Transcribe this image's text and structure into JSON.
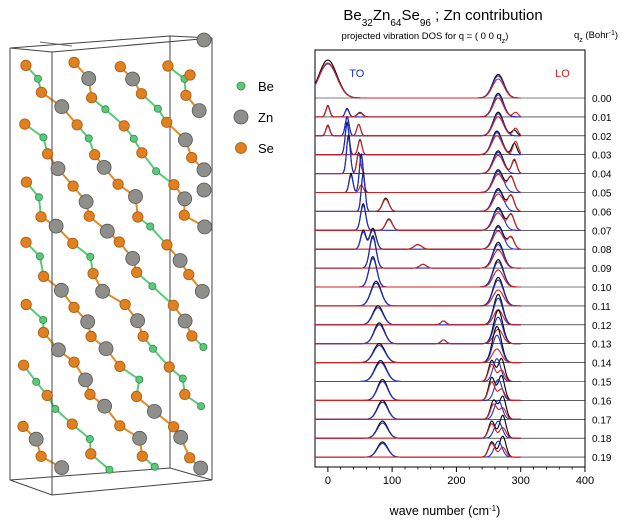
{
  "crystal": {
    "legend": [
      {
        "label": "Be",
        "color": "#5cc97a",
        "icon": "be-atom-icon"
      },
      {
        "label": "Zn",
        "color": "#8e8e8a",
        "icon": "zn-atom-icon"
      },
      {
        "label": "Se",
        "color": "#e0801f",
        "icon": "se-atom-icon"
      }
    ],
    "bond_color": "#e08a2a",
    "be_bond_color": "#5cc97a"
  },
  "chart_data": {
    "type": "line",
    "title": {
      "base1": "Be",
      "sub1": "32",
      "base2": "Zn",
      "sub2": "64",
      "base3": "Se",
      "sub3": "96",
      "rest": " ; Zn contribution"
    },
    "subtitle": {
      "main": "projected vibration DOS for q = ( 0 0 q",
      "sub": "z",
      "end": ")"
    },
    "q_header": {
      "base": "q",
      "sub": "z",
      "rest": " (Bohr",
      "sup": "-1",
      "end": ")"
    },
    "xlabel": {
      "main": "wave number (cm",
      "sup": "-1",
      "end": ")"
    },
    "xlim": [
      -20,
      400
    ],
    "xticks": [
      0,
      100,
      200,
      300,
      400
    ],
    "mode_labels": [
      {
        "text": "TO",
        "x": 45,
        "color": "#1f2fd0"
      },
      {
        "text": "LO",
        "x": 365,
        "color": "#d42020"
      }
    ],
    "q_values": [
      "0.00",
      "0.01",
      "0.02",
      "0.03",
      "0.04",
      "0.05",
      "0.06",
      "0.07",
      "0.08",
      "0.09",
      "0.10",
      "0.11",
      "0.12",
      "0.13",
      "0.14",
      "0.15",
      "0.16",
      "0.17",
      "0.18",
      "0.19"
    ],
    "colors": {
      "black": "#000000",
      "blue": "#1f2fd0",
      "red": "#d42020"
    },
    "series": [
      {
        "name": "black",
        "color": "#000000",
        "peaks_by_row": [
          [
            [
              0,
              14,
              1.0
            ],
            [
              265,
              9,
              0.62
            ]
          ],
          [
            [
              0,
              3,
              0.3
            ],
            [
              30,
              3,
              0.22
            ],
            [
              50,
              4,
              0.12
            ],
            [
              265,
              8,
              0.62
            ]
          ],
          [
            [
              0,
              3,
              0.28
            ],
            [
              30,
              3,
              0.5
            ],
            [
              48,
              3,
              0.3
            ],
            [
              265,
              8,
              0.62
            ],
            [
              290,
              4,
              0.15
            ]
          ],
          [
            [
              30,
              3,
              0.85
            ],
            [
              50,
              3,
              0.4
            ],
            [
              263,
              8,
              0.62
            ],
            [
              290,
              4,
              0.3
            ]
          ],
          [
            [
              32,
              3,
              1.0
            ],
            [
              48,
              3,
              0.55
            ],
            [
              265,
              8,
              0.6
            ],
            [
              290,
              4,
              0.35
            ]
          ],
          [
            [
              36,
              3,
              0.5
            ],
            [
              52,
              3,
              1.0
            ],
            [
              265,
              8,
              0.6
            ],
            [
              285,
              5,
              0.4
            ]
          ],
          [
            [
              55,
              3,
              1.0
            ],
            [
              90,
              5,
              0.35
            ],
            [
              265,
              8,
              0.6
            ],
            [
              285,
              5,
              0.4
            ]
          ],
          [
            [
              55,
              4,
              0.7
            ],
            [
              95,
              5,
              0.3
            ],
            [
              265,
              8,
              0.6
            ],
            [
              285,
              5,
              0.4
            ]
          ],
          [
            [
              55,
              4,
              0.5
            ],
            [
              70,
              5,
              0.55
            ],
            [
              140,
              6,
              0.12
            ],
            [
              265,
              8,
              0.62
            ],
            [
              285,
              5,
              0.3
            ]
          ],
          [
            [
              70,
              5,
              0.85
            ],
            [
              148,
              5,
              0.1
            ],
            [
              265,
              8,
              0.68
            ]
          ],
          [
            [
              70,
              6,
              0.8
            ],
            [
              265,
              8,
              0.72
            ]
          ],
          [
            [
              75,
              8,
              0.65
            ],
            [
              265,
              8,
              0.75
            ]
          ],
          [
            [
              78,
              8,
              0.5
            ],
            [
              180,
              4,
              0.1
            ],
            [
              265,
              7,
              0.8
            ]
          ],
          [
            [
              80,
              8,
              0.55
            ],
            [
              180,
              4,
              0.1
            ],
            [
              265,
              7,
              0.88
            ]
          ],
          [
            [
              80,
              9,
              0.5
            ],
            [
              263,
              7,
              0.95
            ]
          ],
          [
            [
              82,
              9,
              0.55
            ],
            [
              255,
              5,
              0.55
            ],
            [
              270,
              5,
              0.6
            ]
          ],
          [
            [
              85,
              8,
              0.55
            ],
            [
              255,
              5,
              0.6
            ],
            [
              270,
              5,
              0.65
            ]
          ],
          [
            [
              85,
              8,
              0.5
            ],
            [
              258,
              5,
              0.5
            ],
            [
              272,
              5,
              0.6
            ]
          ],
          [
            [
              85,
              8,
              0.45
            ],
            [
              255,
              5,
              0.45
            ],
            [
              272,
              5,
              0.6
            ]
          ],
          [
            [
              85,
              8,
              0.4
            ],
            [
              255,
              5,
              0.4
            ],
            [
              272,
              5,
              0.55
            ]
          ]
        ]
      },
      {
        "name": "blue",
        "color": "#1f2fd0",
        "peaks_by_row": [
          [
            [
              0,
              14,
              0.9
            ],
            [
              265,
              9,
              0.58
            ]
          ],
          [
            [
              0,
              3,
              0.28
            ],
            [
              30,
              3,
              0.2
            ],
            [
              265,
              8,
              0.58
            ]
          ],
          [
            [
              0,
              3,
              0.26
            ],
            [
              30,
              3,
              0.48
            ],
            [
              265,
              8,
              0.58
            ]
          ],
          [
            [
              30,
              3,
              0.8
            ],
            [
              263,
              8,
              0.58
            ]
          ],
          [
            [
              32,
              3,
              0.95
            ],
            [
              265,
              8,
              0.56
            ]
          ],
          [
            [
              36,
              3,
              0.45
            ],
            [
              52,
              3,
              0.95
            ],
            [
              265,
              8,
              0.56
            ]
          ],
          [
            [
              55,
              3,
              0.95
            ],
            [
              265,
              8,
              0.56
            ]
          ],
          [
            [
              55,
              4,
              0.65
            ],
            [
              265,
              8,
              0.56
            ]
          ],
          [
            [
              55,
              4,
              0.45
            ],
            [
              70,
              5,
              0.5
            ],
            [
              265,
              8,
              0.58
            ]
          ],
          [
            [
              70,
              5,
              0.8
            ],
            [
              265,
              8,
              0.62
            ]
          ],
          [
            [
              70,
              6,
              0.75
            ],
            [
              265,
              8,
              0.66
            ]
          ],
          [
            [
              75,
              8,
              0.6
            ],
            [
              265,
              8,
              0.68
            ]
          ],
          [
            [
              78,
              8,
              0.45
            ],
            [
              265,
              7,
              0.7
            ]
          ],
          [
            [
              80,
              8,
              0.5
            ],
            [
              265,
              7,
              0.7
            ]
          ],
          [
            [
              80,
              9,
              0.45
            ],
            [
              263,
              7,
              0.72
            ]
          ],
          [
            [
              82,
              9,
              0.5
            ],
            [
              263,
              6,
              0.6
            ]
          ],
          [
            [
              85,
              8,
              0.5
            ],
            [
              265,
              6,
              0.55
            ]
          ],
          [
            [
              85,
              8,
              0.45
            ],
            [
              265,
              6,
              0.5
            ]
          ],
          [
            [
              85,
              8,
              0.4
            ],
            [
              265,
              6,
              0.45
            ]
          ],
          [
            [
              85,
              8,
              0.36
            ],
            [
              265,
              6,
              0.42
            ]
          ]
        ]
      },
      {
        "name": "red",
        "color": "#d42020",
        "peaks_by_row": [
          [
            [
              0,
              14,
              0.92
            ],
            [
              265,
              9,
              0.5
            ]
          ],
          [
            [
              0,
              3,
              0.28
            ],
            [
              50,
              4,
              0.1
            ],
            [
              265,
              8,
              0.5
            ],
            [
              292,
              4,
              0.12
            ]
          ],
          [
            [
              0,
              3,
              0.26
            ],
            [
              48,
              3,
              0.3
            ],
            [
              265,
              8,
              0.5
            ],
            [
              292,
              4,
              0.2
            ]
          ],
          [
            [
              50,
              3,
              0.38
            ],
            [
              263,
              8,
              0.5
            ],
            [
              292,
              4,
              0.35
            ]
          ],
          [
            [
              48,
              3,
              0.52
            ],
            [
              265,
              8,
              0.48
            ],
            [
              290,
              4,
              0.38
            ]
          ],
          [
            [
              52,
              3,
              0.2
            ],
            [
              265,
              8,
              0.48
            ],
            [
              285,
              5,
              0.42
            ]
          ],
          [
            [
              90,
              5,
              0.32
            ],
            [
              265,
              8,
              0.46
            ],
            [
              285,
              5,
              0.42
            ]
          ],
          [
            [
              95,
              5,
              0.28
            ],
            [
              265,
              8,
              0.46
            ],
            [
              285,
              5,
              0.42
            ]
          ],
          [
            [
              140,
              6,
              0.12
            ],
            [
              265,
              8,
              0.48
            ],
            [
              285,
              5,
              0.32
            ]
          ],
          [
            [
              148,
              5,
              0.1
            ],
            [
              265,
              8,
              0.48
            ]
          ],
          [
            [
              265,
              8,
              0.45
            ]
          ],
          [
            [
              265,
              8,
              0.42
            ]
          ],
          [
            [
              180,
              4,
              0.1
            ],
            [
              265,
              7,
              0.4
            ]
          ],
          [
            [
              180,
              4,
              0.1
            ],
            [
              265,
              7,
              0.38
            ]
          ],
          [
            [
              263,
              7,
              0.36
            ]
          ],
          [
            [
              255,
              5,
              0.45
            ],
            [
              270,
              5,
              0.3
            ]
          ],
          [
            [
              255,
              5,
              0.48
            ],
            [
              270,
              5,
              0.3
            ]
          ],
          [
            [
              258,
              5,
              0.4
            ],
            [
              272,
              5,
              0.3
            ]
          ],
          [
            [
              255,
              5,
              0.38
            ],
            [
              272,
              5,
              0.28
            ]
          ],
          [
            [
              255,
              5,
              0.36
            ],
            [
              272,
              5,
              0.26
            ]
          ]
        ]
      }
    ]
  }
}
